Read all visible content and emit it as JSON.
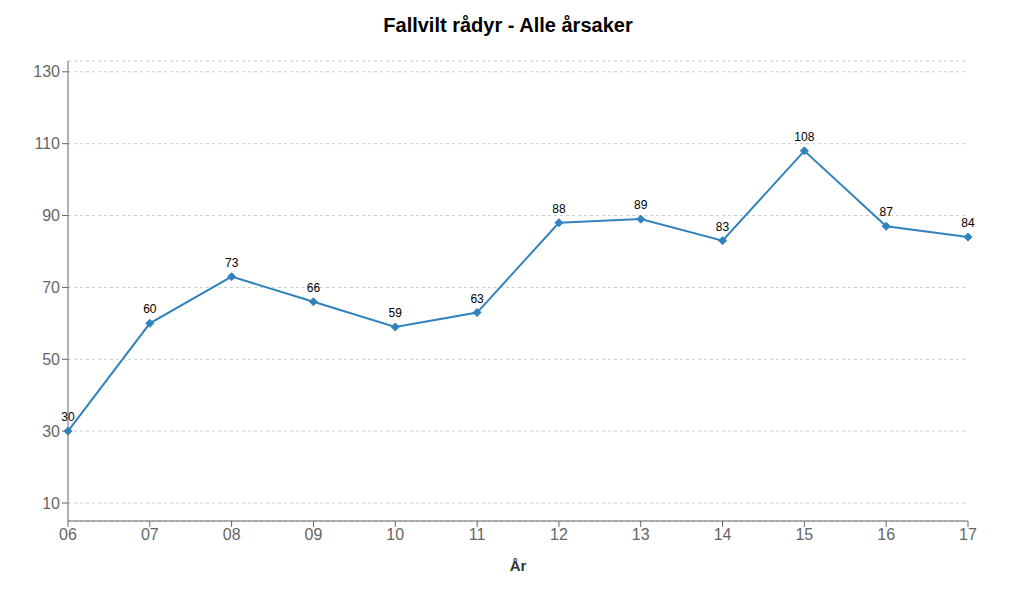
{
  "chart_data": {
    "type": "line",
    "title": "Fallvilt rådyr - Alle årsaker",
    "x_label": "År",
    "categories": [
      "06",
      "07",
      "08",
      "09",
      "10",
      "11",
      "12",
      "13",
      "14",
      "15",
      "16",
      "17"
    ],
    "values": [
      30,
      60,
      73,
      66,
      59,
      63,
      88,
      89,
      83,
      108,
      87,
      84
    ],
    "ylim": [
      5,
      133
    ],
    "yticks": [
      10,
      30,
      50,
      70,
      90,
      110,
      130
    ],
    "grid": true,
    "data_labels": true,
    "marker": "diamond"
  }
}
